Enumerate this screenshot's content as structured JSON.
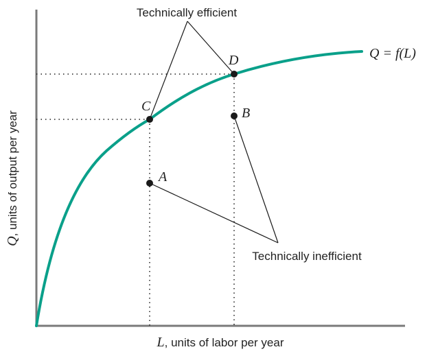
{
  "diagram": {
    "curve_label": "Q = f(L)",
    "colors": {
      "curve": "#0aa08a",
      "axes": "#7a7a7a",
      "points": "#1a1a1a",
      "lines": "#1a1a1a"
    },
    "axes": {
      "x_label_var": "L",
      "x_label_rest": ", units of labor per year",
      "y_label_var": "Q",
      "y_label_rest": ", units of output per year"
    },
    "points": [
      {
        "id": "A",
        "label": "A",
        "efficient": false
      },
      {
        "id": "B",
        "label": "B",
        "efficient": false
      },
      {
        "id": "C",
        "label": "C",
        "efficient": true
      },
      {
        "id": "D",
        "label": "D",
        "efficient": true
      }
    ],
    "annotations": {
      "efficient": "Technically efficient",
      "inefficient": "Technically inefficient"
    }
  }
}
